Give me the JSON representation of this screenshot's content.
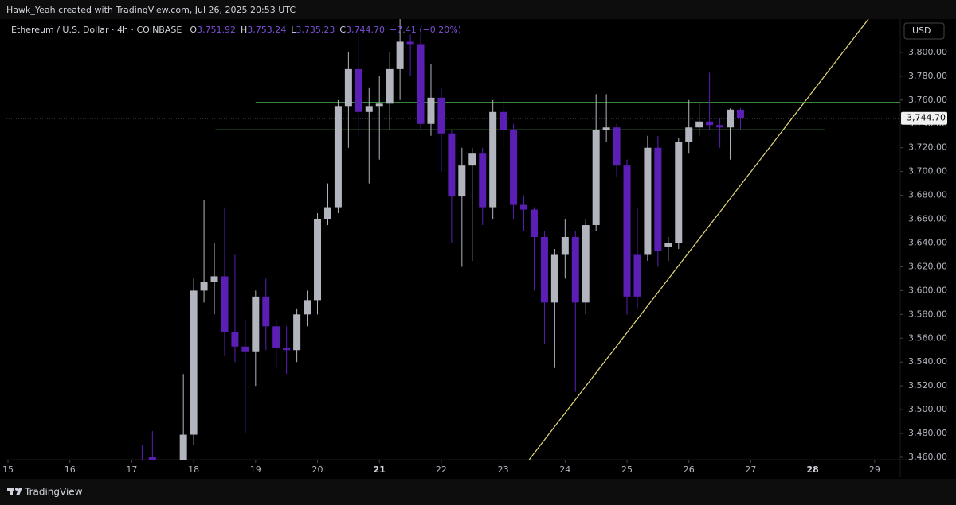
{
  "header": {
    "created": "Hawk_Yeah created with TradingView.com, Jul 26, 2025 20:53 UTC"
  },
  "footer": {
    "brand": "TradingView"
  },
  "chart_data": {
    "type": "candlestick",
    "symbol": "Ethereum / U.S. Dollar · 4h · COINBASE",
    "ohlc_legend": [
      {
        "key": "O",
        "value": "3,751.92"
      },
      {
        "key": "H",
        "value": "3,753.24"
      },
      {
        "key": "L",
        "value": "3,735.23"
      },
      {
        "key": "C",
        "value": "3,744.70"
      }
    ],
    "change": "−7.41 (−0.20%)",
    "currency": "USD",
    "up_color": "#b2b5be",
    "down_color": "#5b1fb5",
    "x": [
      17.1667,
      17.3333,
      17.8333,
      18,
      18.1667,
      18.3333,
      18.5,
      18.6667,
      18.8333,
      19,
      19.1667,
      19.3333,
      19.5,
      19.6667,
      19.8333,
      20,
      20.1667,
      20.3333,
      20.5,
      20.6667,
      20.8333,
      21,
      21.1667,
      21.3333,
      21.5,
      21.6667,
      21.8333,
      22,
      22.1667,
      22.3333,
      22.5,
      22.6667,
      22.8333,
      23,
      23.1667,
      23.3333,
      23.5,
      23.6667,
      23.8333,
      24,
      24.1667,
      24.3333,
      24.5,
      24.6667,
      24.8333,
      25,
      25.1667,
      25.3333,
      25.5,
      25.6667,
      25.8333,
      26,
      26.1667,
      26.3333,
      26.5,
      26.6667,
      26.8333
    ],
    "open": [
      3455,
      3460,
      3440,
      3479,
      3600,
      3607,
      3612,
      3565,
      3553,
      3549,
      3595,
      3570,
      3552,
      3550,
      3580,
      3592,
      3660,
      3670,
      3755,
      3786,
      3750,
      3755,
      3757,
      3786,
      3809,
      3807,
      3740,
      3762,
      3732,
      3679,
      3705,
      3715,
      3670,
      3750,
      3735,
      3672,
      3668,
      3645,
      3590,
      3630,
      3645,
      3590,
      3655,
      3735,
      3737,
      3705,
      3630,
      3630,
      3720,
      3637,
      3640,
      3725,
      3737,
      3742,
      3739,
      3737,
      3751.92
    ],
    "high": [
      3470,
      3482,
      3530,
      3610,
      3676,
      3640,
      3670,
      3630,
      3575,
      3600,
      3610,
      3575,
      3570,
      3585,
      3600,
      3665,
      3690,
      3760,
      3800,
      3820,
      3770,
      3780,
      3800,
      3830,
      3815,
      3815,
      3790,
      3770,
      3735,
      3720,
      3720,
      3720,
      3760,
      3765,
      3740,
      3680,
      3670,
      3650,
      3635,
      3660,
      3650,
      3660,
      3765,
      3765,
      3740,
      3710,
      3670,
      3730,
      3730,
      3645,
      3728,
      3760,
      3758,
      3783,
      3745,
      3753,
      3753.24
    ],
    "low": [
      3440,
      3440,
      3430,
      3470,
      3590,
      3580,
      3545,
      3540,
      3480,
      3520,
      3550,
      3535,
      3530,
      3540,
      3570,
      3580,
      3655,
      3665,
      3720,
      3730,
      3690,
      3710,
      3735,
      3760,
      3780,
      3735,
      3730,
      3700,
      3640,
      3620,
      3625,
      3655,
      3660,
      3720,
      3660,
      3650,
      3600,
      3555,
      3535,
      3610,
      3515,
      3580,
      3650,
      3725,
      3695,
      3580,
      3585,
      3625,
      3620,
      3625,
      3635,
      3715,
      3730,
      3735,
      3720,
      3710,
      3735.23
    ],
    "close": [
      3450,
      3450,
      3479,
      3600,
      3607,
      3612,
      3565,
      3553,
      3549,
      3595,
      3570,
      3552,
      3550,
      3580,
      3592,
      3660,
      3670,
      3755,
      3786,
      3750,
      3755,
      3757,
      3786,
      3809,
      3807,
      3740,
      3762,
      3732,
      3679,
      3705,
      3715,
      3670,
      3750,
      3735,
      3672,
      3668,
      3645,
      3590,
      3630,
      3645,
      3590,
      3655,
      3735,
      3737,
      3705,
      3595,
      3595,
      3720,
      3633,
      3640,
      3725,
      3737,
      3742,
      3739,
      3737,
      3752,
      3744.7
    ],
    "last_price": {
      "value": 3744.7,
      "label": "3,744.70"
    },
    "hlines": [
      {
        "price": 3758,
        "from": 19.0,
        "color": "#4caf50"
      },
      {
        "price": 3735,
        "from": 18.35,
        "to": 28.2,
        "color": "#4caf50"
      }
    ],
    "trendline": {
      "x": [
        23.42,
        28.9
      ],
      "y": [
        3458,
        3828
      ],
      "color": "#e6d97a"
    },
    "xlim": [
      14.974,
      29.414
    ],
    "xticks": [
      15,
      16,
      17,
      18,
      19,
      20,
      21,
      22,
      23,
      24,
      25,
      26,
      27,
      28,
      29
    ],
    "xticks_bold": [
      21,
      28
    ],
    "ylim": [
      3458,
      3828
    ],
    "yticks": [
      {
        "value": 3460,
        "label": "3,460.00"
      },
      {
        "value": 3480,
        "label": "3,480.00"
      },
      {
        "value": 3500,
        "label": "3,500.00"
      },
      {
        "value": 3520,
        "label": "3,520.00"
      },
      {
        "value": 3540,
        "label": "3,540.00"
      },
      {
        "value": 3560,
        "label": "3,560.00"
      },
      {
        "value": 3580,
        "label": "3,580.00"
      },
      {
        "value": 3600,
        "label": "3,600.00"
      },
      {
        "value": 3620,
        "label": "3,620.00"
      },
      {
        "value": 3640,
        "label": "3,640.00"
      },
      {
        "value": 3660,
        "label": "3,660.00"
      },
      {
        "value": 3680,
        "label": "3,680.00"
      },
      {
        "value": 3700,
        "label": "3,700.00"
      },
      {
        "value": 3720,
        "label": "3,720.00"
      },
      {
        "value": 3740,
        "label": "3,740.00"
      },
      {
        "value": 3760,
        "label": "3,760.00"
      },
      {
        "value": 3780,
        "label": "3,780.00"
      },
      {
        "value": 3800,
        "label": "3,800.00"
      }
    ]
  }
}
